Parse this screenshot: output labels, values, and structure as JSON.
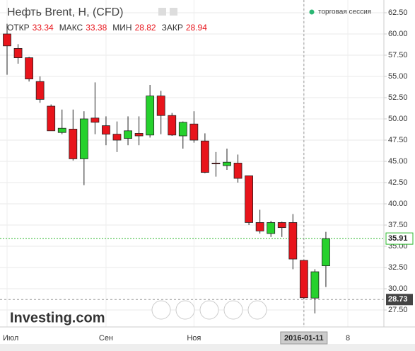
{
  "chart_data": {
    "type": "candlestick",
    "title": "Нефть Brent, H, (CFD)",
    "session_legend": "торговая сессия",
    "watermark": "Investing.com",
    "header_labels": [
      "ОТКР",
      "МАКС",
      "МИН",
      "ЗАКР"
    ],
    "categories": [
      "Июл",
      null,
      null,
      null,
      null,
      null,
      null,
      null,
      null,
      "Сен",
      null,
      null,
      null,
      null,
      null,
      null,
      null,
      "Ноя",
      null,
      null,
      null,
      null,
      null,
      null,
      null,
      null,
      null,
      "2016-01-11",
      null,
      null,
      null,
      "8"
    ],
    "series": [
      {
        "open": [
          60.0,
          58.3,
          57.2,
          54.4,
          51.5,
          48.4,
          48.8,
          45.3,
          50.1,
          49.2,
          48.2,
          47.7,
          48.3,
          48.1,
          52.7,
          50.4,
          48.0,
          49.4,
          47.4,
          44.8,
          44.5,
          44.8,
          43.3,
          37.8,
          36.5,
          37.8,
          37.8,
          33.34,
          28.9,
          32.7,
          null,
          null
        ],
        "high": [
          61.2,
          58.8,
          57.3,
          55.0,
          51.7,
          51.1,
          51.1,
          50.9,
          54.3,
          50.3,
          49.7,
          50.3,
          50.3,
          54.0,
          53.3,
          50.7,
          49.7,
          50.9,
          48.3,
          46.1,
          46.5,
          45.8,
          43.3,
          39.3,
          38.0,
          37.9,
          38.8,
          33.38,
          32.3,
          36.7,
          null,
          null
        ],
        "low": [
          55.2,
          56.5,
          54.4,
          51.9,
          48.6,
          48.2,
          45.1,
          42.2,
          48.2,
          46.9,
          46.1,
          46.9,
          46.9,
          47.8,
          48.2,
          48.0,
          46.5,
          47.2,
          43.6,
          43.2,
          44.0,
          42.5,
          37.5,
          36.5,
          36.1,
          36.1,
          32.3,
          28.82,
          27.1,
          30.2,
          null,
          null
        ],
        "close": [
          58.6,
          57.2,
          54.7,
          52.3,
          48.6,
          48.9,
          45.3,
          50.0,
          49.6,
          48.2,
          47.5,
          48.6,
          48.0,
          52.7,
          50.4,
          48.1,
          49.6,
          47.5,
          43.7,
          44.7,
          44.9,
          43.0,
          37.8,
          36.8,
          37.8,
          37.2,
          33.5,
          28.94,
          32.0,
          35.9,
          null,
          null
        ],
        "up_color": "#26d12d",
        "down_color": "#e8141b"
      }
    ],
    "last_price": 35.91,
    "crosshair": {
      "category": "2016-01-11",
      "y": 28.73
    },
    "ylim": [
      25.67,
      64.0
    ],
    "yticks": [
      {
        "value": 27.5,
        "label": "27.50"
      },
      {
        "value": 30,
        "label": "30.00"
      },
      {
        "value": 32.5,
        "label": "32.50"
      },
      {
        "value": 35,
        "label": "35.00"
      },
      {
        "value": 37.5,
        "label": "37.50"
      },
      {
        "value": 40,
        "label": "40.00"
      },
      {
        "value": 42.5,
        "label": "42.50"
      },
      {
        "value": 45,
        "label": "45.00"
      },
      {
        "value": 47.5,
        "label": "47.50"
      },
      {
        "value": 50,
        "label": "50.00"
      },
      {
        "value": 52.5,
        "label": "52.50"
      },
      {
        "value": 55,
        "label": "55.00"
      },
      {
        "value": 57.5,
        "label": "57.50"
      },
      {
        "value": 60,
        "label": "60.00"
      },
      {
        "value": 62.5,
        "label": "62.50"
      }
    ],
    "grid": true
  }
}
